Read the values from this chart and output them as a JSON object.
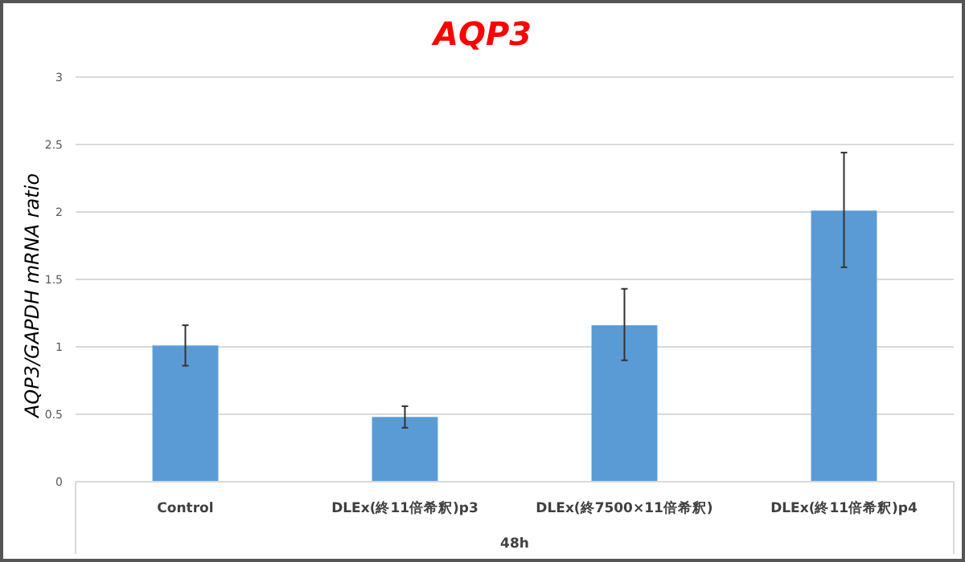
{
  "chart_data": {
    "type": "bar",
    "title": "AQP3",
    "xlabel": "48h",
    "ylabel": "AQP3/GAPDH mRNA ratio",
    "categories": [
      "Control",
      "DLEx(終11倍希釈)p3",
      "DLEx(終7500×11倍希釈)",
      "DLEx(終11倍希釈)p4"
    ],
    "values": [
      1.01,
      0.48,
      1.16,
      2.01
    ],
    "errors": [
      [
        0.86,
        1.16
      ],
      [
        0.4,
        0.56
      ],
      [
        0.9,
        1.43
      ],
      [
        1.59,
        2.44
      ]
    ],
    "color": "#5b9bd5",
    "ylim": [
      0,
      3
    ],
    "yticks": [
      0,
      0.5,
      1,
      1.5,
      2,
      2.5,
      3
    ],
    "grid": "y"
  }
}
